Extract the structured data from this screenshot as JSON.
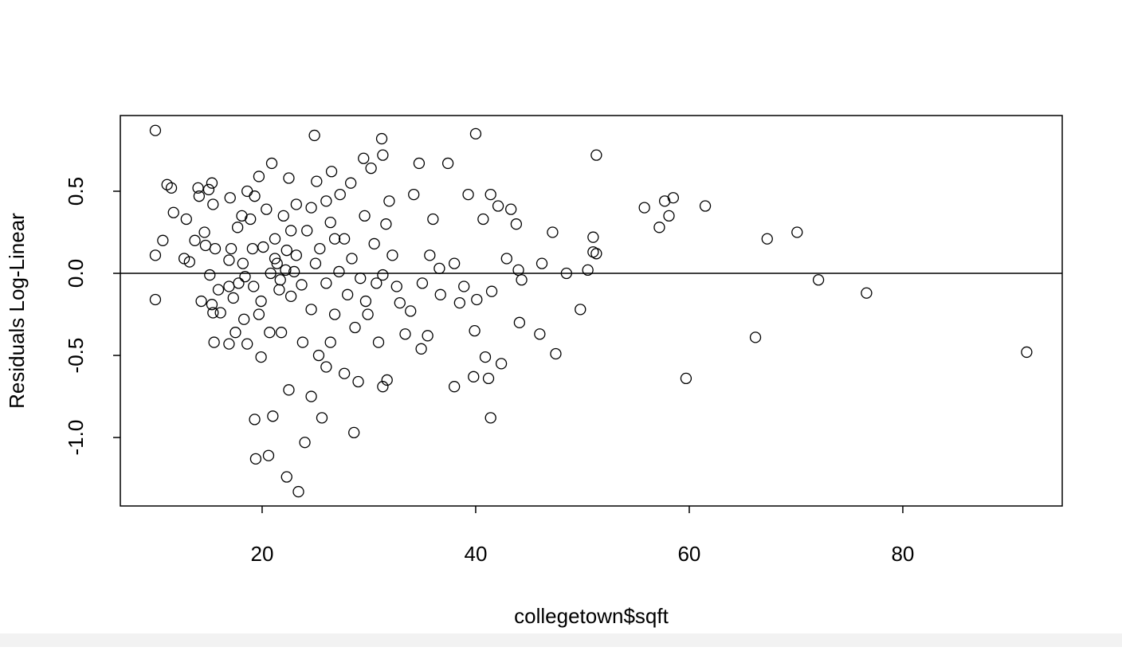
{
  "chart_data": {
    "type": "scatter",
    "xlabel": "collegetown$sqft",
    "ylabel": "Residuals Log-Linear",
    "xlim": [
      6.72,
      94.93
    ],
    "ylim": [
      -1.417,
      0.961
    ],
    "xticks": [
      20,
      40,
      60,
      80
    ],
    "yticks": [
      {
        "value": -1,
        "label": "-1.0"
      },
      -0.5,
      {
        "value": 0,
        "label": "0.0"
      },
      0.5
    ],
    "hline": 0,
    "color": "#000000",
    "x": [
      10.0,
      10.0,
      10.0,
      10.7,
      11.1,
      11.5,
      11.7,
      12.7,
      12.9,
      13.2,
      13.7,
      14.0,
      14.1,
      14.3,
      14.6,
      14.7,
      15.0,
      15.1,
      15.3,
      15.3,
      15.4,
      15.4,
      15.5,
      15.6,
      15.9,
      16.1,
      16.9,
      16.9,
      17.0,
      17.1,
      16.9,
      17.3,
      17.5,
      17.7,
      18.1,
      18.3,
      18.4,
      18.6,
      18.6,
      18.9,
      19.1,
      19.3,
      19.3,
      19.4,
      19.7,
      19.9,
      19.9,
      20.1,
      20.4,
      20.6,
      20.7,
      20.9,
      21.0,
      21.2,
      21.6,
      21.8,
      22.0,
      22.3,
      22.5,
      22.5,
      23.0,
      23.2,
      23.4,
      24.0,
      24.6,
      24.9,
      25.1,
      25.6,
      26.0,
      26.5,
      26.8,
      27.3,
      27.7,
      28.6,
      29.0,
      29.5,
      29.7,
      30.2,
      30.7,
      31.2,
      31.3,
      31.3,
      31.7,
      31.9,
      32.9,
      33.4,
      34.2,
      34.7,
      34.9,
      35.5,
      36.0,
      36.6,
      37.4,
      38.0,
      38.5,
      39.8,
      39.9,
      40.0,
      40.1,
      40.7,
      40.9,
      41.2,
      41.4,
      41.4,
      41.5,
      42.1,
      42.4,
      42.9,
      43.3,
      43.8,
      44.0,
      44.1,
      44.3,
      46.0,
      46.2,
      47.2,
      47.5,
      48.5,
      49.8,
      50.5,
      51.0,
      51.0,
      51.3,
      51.3,
      55.8,
      57.2,
      57.7,
      58.1,
      58.5,
      59.7,
      61.5,
      66.2,
      67.3,
      70.1,
      72.1,
      76.6,
      91.6,
      20.8,
      21.4,
      21.7,
      22.2,
      22.7,
      23.2,
      23.7,
      24.2,
      24.6,
      25.0,
      25.4,
      26.0,
      26.4,
      26.8,
      27.2,
      27.7,
      28.0,
      28.4,
      28.7,
      29.2,
      29.6,
      29.9,
      30.5,
      30.9,
      31.3,
      31.6,
      32.2,
      32.6,
      22.3,
      21.2,
      19.7,
      19.2,
      18.2,
      17.8,
      23.8,
      25.3,
      26.4,
      22.7,
      24.6,
      26.0,
      28.3,
      33.9,
      35.0,
      35.7,
      36.7,
      38.0,
      38.9,
      39.3
    ],
    "y": [
      0.87,
      0.11,
      -0.16,
      0.2,
      0.54,
      0.52,
      0.37,
      0.09,
      0.33,
      0.07,
      0.2,
      0.52,
      0.47,
      -0.17,
      0.25,
      0.17,
      0.51,
      -0.01,
      0.55,
      -0.19,
      -0.24,
      0.42,
      -0.42,
      0.15,
      -0.1,
      -0.24,
      -0.08,
      -0.43,
      0.46,
      0.15,
      0.08,
      -0.15,
      -0.36,
      0.28,
      0.35,
      -0.28,
      -0.02,
      0.5,
      -0.43,
      0.33,
      0.15,
      0.47,
      -0.89,
      -1.13,
      0.59,
      -0.51,
      -0.17,
      0.16,
      0.39,
      -1.11,
      -0.36,
      0.67,
      -0.87,
      0.09,
      -0.1,
      -0.36,
      0.35,
      -1.24,
      0.58,
      -0.71,
      0.01,
      0.42,
      -1.33,
      -1.03,
      -0.75,
      0.84,
      0.56,
      -0.88,
      -0.57,
      0.62,
      0.21,
      0.48,
      -0.61,
      -0.97,
      -0.66,
      0.7,
      -0.17,
      0.64,
      -0.06,
      0.82,
      0.72,
      -0.69,
      -0.65,
      0.44,
      -0.18,
      -0.37,
      0.48,
      0.67,
      -0.46,
      -0.38,
      0.33,
      0.03,
      0.67,
      -0.69,
      -0.18,
      -0.63,
      -0.35,
      0.85,
      -0.16,
      0.33,
      -0.51,
      -0.64,
      0.48,
      -0.88,
      -0.11,
      0.41,
      -0.55,
      0.09,
      0.39,
      0.3,
      0.02,
      -0.3,
      -0.04,
      -0.37,
      0.06,
      0.25,
      -0.49,
      0.0,
      -0.22,
      0.02,
      0.22,
      0.13,
      0.72,
      0.12,
      0.4,
      0.28,
      0.44,
      0.35,
      0.46,
      -0.64,
      0.41,
      -0.39,
      0.21,
      0.25,
      -0.04,
      -0.12,
      -0.48,
      0.0,
      0.06,
      -0.04,
      0.02,
      -0.14,
      0.11,
      -0.07,
      0.26,
      -0.22,
      0.06,
      0.15,
      -0.06,
      0.31,
      -0.25,
      0.01,
      0.21,
      -0.13,
      0.09,
      -0.33,
      -0.03,
      0.35,
      -0.25,
      0.18,
      -0.42,
      -0.01,
      0.3,
      0.11,
      -0.08,
      0.14,
      0.21,
      -0.25,
      -0.08,
      0.06,
      -0.06,
      -0.42,
      -0.5,
      -0.42,
      0.26,
      0.4,
      0.44,
      0.55,
      -0.23,
      -0.06,
      0.11,
      -0.13,
      0.06,
      -0.08,
      0.48
    ]
  }
}
